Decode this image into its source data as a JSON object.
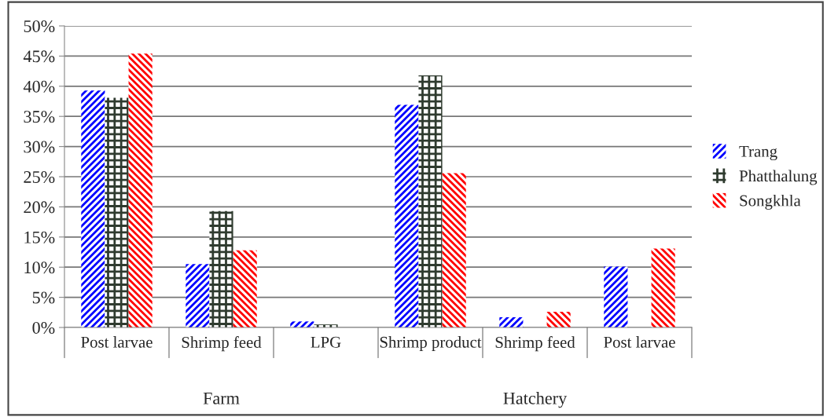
{
  "chart_data": {
    "type": "bar",
    "categories": [
      "Post larvae",
      "Shrimp feed",
      "LPG",
      "Shrimp product",
      "Shrimp feed",
      "Post larvae"
    ],
    "series": [
      {
        "name": "Trang",
        "color": "#0000ff",
        "values": [
          39.3,
          10.5,
          1.0,
          36.9,
          1.7,
          10.1
        ]
      },
      {
        "name": "Phatthalung",
        "color": "#2f3b2f",
        "values": [
          38.1,
          19.3,
          0.5,
          41.8,
          null,
          null
        ]
      },
      {
        "name": "Songkhla",
        "color": "#ff0000",
        "values": [
          45.4,
          12.8,
          null,
          25.6,
          2.6,
          13.1
        ]
      }
    ],
    "ylim": [
      0,
      50
    ],
    "yticks": [
      {
        "value": 0,
        "label": "0%"
      },
      {
        "value": 5,
        "label": "5%"
      },
      {
        "value": 10,
        "label": "10%"
      },
      {
        "value": 15,
        "label": "15%"
      },
      {
        "value": 20,
        "label": "20%"
      },
      {
        "value": 25,
        "label": "25%"
      },
      {
        "value": 30,
        "label": "30%"
      },
      {
        "value": 35,
        "label": "35%"
      },
      {
        "value": 40,
        "label": "40%"
      },
      {
        "value": 45,
        "label": "45%"
      },
      {
        "value": 50,
        "label": "50%"
      }
    ],
    "annotations": [
      "Farm",
      "Hatchery"
    ],
    "grid": "y",
    "legend": "right"
  }
}
